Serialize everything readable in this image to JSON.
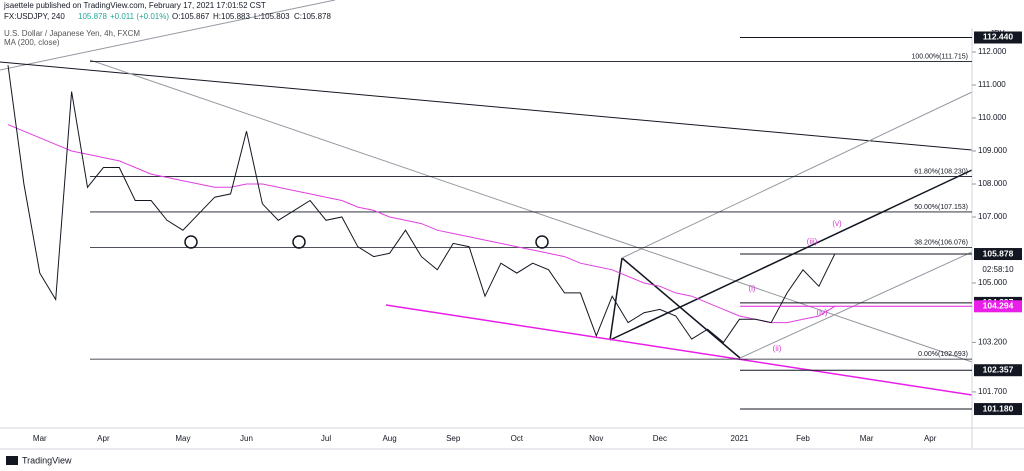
{
  "header": {
    "publisher": "jsaettele published on TradingView.com, February 17, 2021 17:01:52 CST",
    "symbol": "FX:USDJPY, 240",
    "last": "105.878",
    "change": "+0.011 (+0.01%)",
    "ohlc": [
      "O:105.867",
      "H:105.883",
      "L:105.803",
      "C:105.878"
    ]
  },
  "footer": {
    "brand": "TradingView"
  },
  "chart_data": {
    "type": "line",
    "title": "U.S. Dollar / Japanese Yen, 4h, FXCM",
    "currency": "JPY",
    "categories": [
      null,
      null,
      "Mar",
      null,
      null,
      null,
      "Apr",
      null,
      null,
      null,
      null,
      "May",
      null,
      null,
      null,
      "Jun",
      null,
      null,
      null,
      null,
      "Jul",
      null,
      null,
      null,
      "Aug",
      null,
      null,
      null,
      "Sep",
      null,
      null,
      null,
      "Oct",
      null,
      null,
      null,
      null,
      "Nov",
      null,
      null,
      null,
      "Dec",
      null,
      null,
      null,
      null,
      "2021",
      null,
      null,
      null,
      "Feb",
      null,
      null,
      null,
      "Mar",
      null,
      null,
      null,
      "Apr",
      null
    ],
    "values": [
      111.6,
      108.0,
      105.3,
      104.5,
      110.8,
      107.9,
      108.5,
      108.5,
      107.5,
      107.5,
      106.9,
      106.6,
      107.1,
      107.6,
      107.7,
      109.6,
      107.4,
      106.9,
      107.2,
      107.5,
      106.9,
      107.0,
      106.1,
      105.8,
      105.9,
      106.6,
      105.8,
      105.4,
      106.2,
      106.1,
      104.6,
      105.6,
      105.3,
      105.6,
      105.4,
      104.7,
      104.7,
      103.4,
      104.6,
      103.8,
      104.1,
      104.2,
      104.0,
      103.3,
      103.6,
      103.2,
      103.9,
      103.9,
      103.8,
      104.7,
      105.4,
      104.9,
      105.878,
      null,
      null,
      null,
      null,
      null,
      null,
      null
    ],
    "color": "#131722",
    "ma": {
      "label": "MA (200, close)",
      "color": "#e040e0",
      "values": [
        109.8,
        109.6,
        109.4,
        109.2,
        109.0,
        108.9,
        108.8,
        108.7,
        108.5,
        108.3,
        108.2,
        108.1,
        108.0,
        107.9,
        107.9,
        108.0,
        108.0,
        107.9,
        107.8,
        107.7,
        107.6,
        107.5,
        107.3,
        107.2,
        107.0,
        106.9,
        106.8,
        106.6,
        106.5,
        106.4,
        106.3,
        106.2,
        106.1,
        106.0,
        105.9,
        105.8,
        105.6,
        105.5,
        105.4,
        105.2,
        105.0,
        104.9,
        104.7,
        104.6,
        104.4,
        104.2,
        104.0,
        103.9,
        103.8,
        103.8,
        103.9,
        104.0,
        104.294,
        null,
        null,
        null,
        null,
        null,
        null,
        null
      ]
    },
    "ylim": [
      100.606,
      112.667
    ],
    "yticks": [
      {
        "value": 112,
        "label": "112.000"
      },
      {
        "value": 111,
        "label": "111.000"
      },
      {
        "value": 110,
        "label": "110.000"
      },
      {
        "value": 109,
        "label": "109.000"
      },
      {
        "value": 108,
        "label": "108.000"
      },
      {
        "value": 107,
        "label": "107.000"
      },
      {
        "value": 105,
        "label": "105.000"
      },
      {
        "value": 103.2,
        "label": "103.200"
      },
      {
        "value": 101.7,
        "label": "101.700"
      }
    ],
    "levels": [
      {
        "value": 111.715,
        "label": "100.00%(111.715)"
      },
      {
        "value": 108.23,
        "label": "61.80%(108.230)"
      },
      {
        "value": 107.153,
        "label": "50.00%(107.153)"
      },
      {
        "value": 106.076,
        "label": "38.20%(106.076)"
      },
      {
        "value": 102.693,
        "label": "0.00%(102.693)"
      }
    ],
    "price_labels": [
      {
        "value": 112.44,
        "label": "112.440",
        "color": "#131722"
      },
      {
        "value": 105.878,
        "label": "105.878",
        "color": "#131722"
      },
      {
        "value": 104.397,
        "label": "104.397",
        "color": "#131722"
      },
      {
        "value": 104.294,
        "label": "104.294",
        "color": "#e91ee9"
      },
      {
        "value": 102.357,
        "label": "102.357",
        "color": "#131722"
      },
      {
        "value": 101.18,
        "label": "101.180",
        "color": "#131722"
      }
    ],
    "countdown": "02:58:10",
    "wave_labels": [
      "(i)",
      "(ii)",
      "(iii)",
      "(iv)",
      "(v)"
    ]
  }
}
